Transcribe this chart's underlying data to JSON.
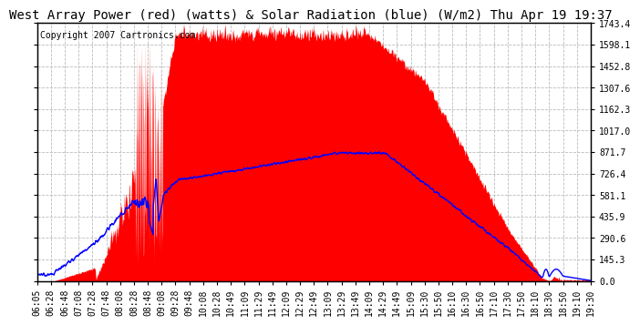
{
  "title": "West Array Power (red) (watts) & Solar Radiation (blue) (W/m2) Thu Apr 19 19:37",
  "copyright": "Copyright 2007 Cartronics.com",
  "background_color": "#ffffff",
  "plot_bg_color": "#ffffff",
  "grid_color": "#bbbbbb",
  "y_max": 1743.4,
  "y_min": 0.0,
  "y_ticks": [
    0.0,
    145.3,
    290.6,
    435.9,
    581.1,
    726.4,
    871.7,
    1017.0,
    1162.3,
    1307.6,
    1452.8,
    1598.1,
    1743.4
  ],
  "x_labels": [
    "06:05",
    "06:28",
    "06:48",
    "07:08",
    "07:28",
    "07:48",
    "08:08",
    "08:28",
    "08:48",
    "09:08",
    "09:28",
    "09:48",
    "10:08",
    "10:28",
    "10:49",
    "11:09",
    "11:29",
    "11:49",
    "12:09",
    "12:29",
    "12:49",
    "13:09",
    "13:29",
    "13:49",
    "14:09",
    "14:29",
    "14:49",
    "15:09",
    "15:30",
    "15:50",
    "16:10",
    "16:30",
    "16:50",
    "17:10",
    "17:30",
    "17:50",
    "18:10",
    "18:30",
    "18:50",
    "19:10",
    "19:30"
  ],
  "red_fill_color": "#ff0000",
  "blue_line_color": "#0000ff",
  "title_fontsize": 10,
  "copyright_fontsize": 7,
  "tick_fontsize": 7
}
